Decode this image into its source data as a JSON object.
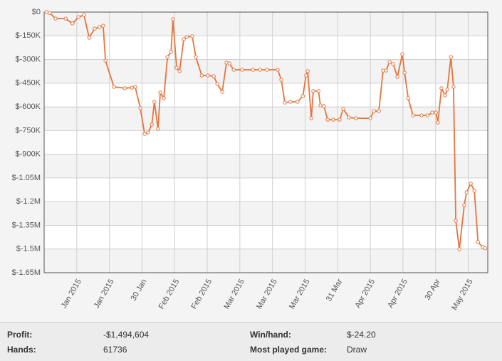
{
  "chart_data": {
    "type": "line",
    "color": "#e2763f",
    "grid": true,
    "x": [
      0.7,
      1.7,
      3.5,
      6.6,
      8.7,
      10.5,
      12.2,
      13.8,
      15.5,
      17.0,
      18.1,
      18.8,
      21.4,
      24.7,
      26.9,
      27.9,
      29.5,
      30.8,
      31.9,
      33.0,
      33.8,
      34.9,
      35.6,
      36.7,
      37.8,
      38.9,
      39.5,
      40.6,
      41.5,
      42.8,
      43.7,
      45.4,
      46.5,
      48.3,
      50.2,
      52.0,
      53.1,
      54.6,
      55.9,
      56.8,
      58.1,
      60.7,
      64.0,
      66.2,
      68.3,
      71.6,
      72.7,
      73.8,
      75.5,
      77.7,
      79.3,
      80.3,
      80.8,
      81.9,
      82.5,
      84.1,
      84.7,
      85.8,
      86.9,
      88.6,
      90.6,
      91.7,
      93.4,
      95.6,
      100.0,
      101.1,
      102.6,
      103.9,
      104.8,
      105.9,
      107.0,
      108.3,
      109.8,
      110.5,
      111.6,
      113.1,
      115.7,
      117.5,
      119.0,
      120.1,
      120.7,
      121.8,
      122.9,
      123.6,
      124.7,
      125.5,
      126.2,
      127.3,
      128.8,
      129.5,
      130.8,
      131.9,
      133.0,
      134.5,
      135.2
    ],
    "values": [
      0,
      -5000,
      -41000,
      -41000,
      -72000,
      -32000,
      -18000,
      -162000,
      -104000,
      -95000,
      -86000,
      -307000,
      -473000,
      -482000,
      -478000,
      -473000,
      -609000,
      -771000,
      -762000,
      -712000,
      -568000,
      -739000,
      -509000,
      -545000,
      -284000,
      -252000,
      -45000,
      -352000,
      -374000,
      -171000,
      -158000,
      -153000,
      -284000,
      -401000,
      -401000,
      -406000,
      -455000,
      -505000,
      -320000,
      -325000,
      -365000,
      -365000,
      -365000,
      -365000,
      -365000,
      -365000,
      -428000,
      -573000,
      -568000,
      -568000,
      -532000,
      -401000,
      -374000,
      -672000,
      -500000,
      -500000,
      -591000,
      -595000,
      -681000,
      -681000,
      -681000,
      -613000,
      -667000,
      -672000,
      -672000,
      -627000,
      -627000,
      -370000,
      -370000,
      -316000,
      -329000,
      -410000,
      -266000,
      -383000,
      -545000,
      -654000,
      -654000,
      -654000,
      -636000,
      -636000,
      -699000,
      -482000,
      -527000,
      -491000,
      -284000,
      -473000,
      -1321000,
      -1501000,
      -1222000,
      -1141000,
      -1086000,
      -1132000,
      -1456000,
      -1488000,
      -1495000
    ],
    "xlim": [
      0,
      136
    ],
    "xticks": [
      {
        "value": 10,
        "label": "Jan 2015"
      },
      {
        "value": 20,
        "label": "Jan 2015"
      },
      {
        "value": 30,
        "label": "30 Jan"
      },
      {
        "value": 40,
        "label": "Feb 2015"
      },
      {
        "value": 50,
        "label": "Feb 2015"
      },
      {
        "value": 60,
        "label": "Mar 2015"
      },
      {
        "value": 70,
        "label": "Mar 2015"
      },
      {
        "value": 80,
        "label": "Mar 2015"
      },
      {
        "value": 90,
        "label": "31 Mar"
      },
      {
        "value": 100,
        "label": "Apr 2015"
      },
      {
        "value": 110,
        "label": "Apr 2015"
      },
      {
        "value": 120,
        "label": "30 Apr"
      },
      {
        "value": 130,
        "label": "May 2015"
      }
    ],
    "ylim": [
      -1650000,
      0
    ],
    "yticks": [
      {
        "value": 0,
        "label": "$0"
      },
      {
        "value": -150000,
        "label": "$-150K"
      },
      {
        "value": -300000,
        "label": "$-300K"
      },
      {
        "value": -450000,
        "label": "$-450K"
      },
      {
        "value": -600000,
        "label": "$-600K"
      },
      {
        "value": -750000,
        "label": "$-750K"
      },
      {
        "value": -900000,
        "label": "$-900K"
      },
      {
        "value": -1050000,
        "label": "$-1.05M"
      },
      {
        "value": -1200000,
        "label": "$-1.2M"
      },
      {
        "value": -1350000,
        "label": "$-1.35M"
      },
      {
        "value": -1500000,
        "label": "$-1.5M"
      },
      {
        "value": -1650000,
        "label": "$-1.65M"
      }
    ]
  },
  "stats": [
    {
      "label": "Profit:",
      "value": "-$1,494,604"
    },
    {
      "label": "Win/hand:",
      "value": "$-24.20"
    },
    {
      "label": "Hands:",
      "value": "61736"
    },
    {
      "label": "Most played game:",
      "value": "Draw"
    }
  ]
}
